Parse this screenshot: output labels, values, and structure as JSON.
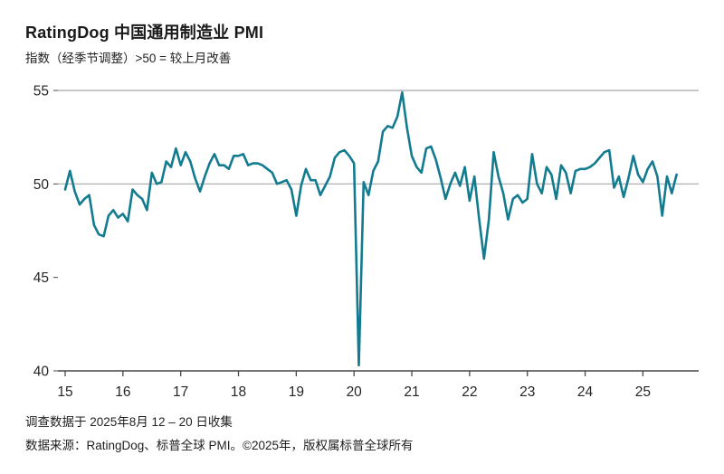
{
  "header": {
    "title": "RatingDog 中国通用制造业 PMI",
    "subtitle": "指数（经季节调整）>50 = 较上月改善"
  },
  "footer": {
    "collection_note": "调查数据于 2025年8月 12 – 20 日收集",
    "source_note": "数据来源：RatingDog、标普全球 PMI。©2025年，版权属标普全球所有"
  },
  "chart_data": {
    "type": "line",
    "title": "RatingDog 中国通用制造业 PMI",
    "series_name": "制造业 PMI（经季节调整）",
    "start": "2015-01",
    "frequency": "monthly",
    "end": "2025-08",
    "values": [
      49.7,
      50.7,
      49.6,
      48.9,
      49.2,
      49.4,
      47.8,
      47.3,
      47.2,
      48.3,
      48.6,
      48.2,
      48.4,
      48.0,
      49.7,
      49.4,
      49.2,
      48.6,
      50.6,
      50.0,
      50.1,
      51.2,
      50.9,
      51.9,
      51.0,
      51.7,
      51.2,
      50.3,
      49.6,
      50.4,
      51.1,
      51.6,
      51.0,
      51.0,
      50.8,
      51.5,
      51.5,
      51.6,
      51.0,
      51.1,
      51.1,
      51.0,
      50.8,
      50.6,
      50.0,
      50.1,
      50.2,
      49.7,
      48.3,
      49.9,
      50.8,
      50.2,
      50.2,
      49.4,
      49.9,
      50.4,
      51.4,
      51.7,
      51.8,
      51.5,
      51.1,
      40.3,
      50.1,
      49.4,
      50.7,
      51.2,
      52.8,
      53.1,
      53.0,
      53.6,
      54.9,
      53.0,
      51.5,
      50.9,
      50.6,
      51.9,
      52.0,
      51.3,
      50.3,
      49.2,
      50.0,
      50.6,
      49.9,
      50.9,
      49.1,
      50.4,
      48.1,
      46.0,
      48.1,
      51.7,
      50.4,
      49.5,
      48.1,
      49.2,
      49.4,
      49.0,
      49.2,
      51.6,
      50.0,
      49.5,
      50.9,
      50.5,
      49.2,
      51.0,
      50.6,
      49.5,
      50.7,
      50.8,
      50.8,
      50.9,
      51.1,
      51.4,
      51.7,
      51.8,
      49.8,
      50.4,
      49.3,
      50.3,
      51.5,
      50.5,
      50.1,
      50.8,
      51.2,
      50.4,
      48.3,
      50.4,
      49.5,
      50.5
    ],
    "ylim": [
      40,
      55
    ],
    "yticks": [
      55,
      50,
      45,
      40
    ],
    "xticks": [
      "15",
      "16",
      "17",
      "18",
      "19",
      "20",
      "21",
      "22",
      "23",
      "24",
      "25"
    ],
    "reference_line": 50,
    "grid": "horizontal lines at 55 and 50 only; dark baseline at 40",
    "legend": "none",
    "xlabel": "",
    "ylabel": "",
    "line_color": "#127b90",
    "grid_color": "#a8a8a8",
    "axis_color": "#474747"
  }
}
